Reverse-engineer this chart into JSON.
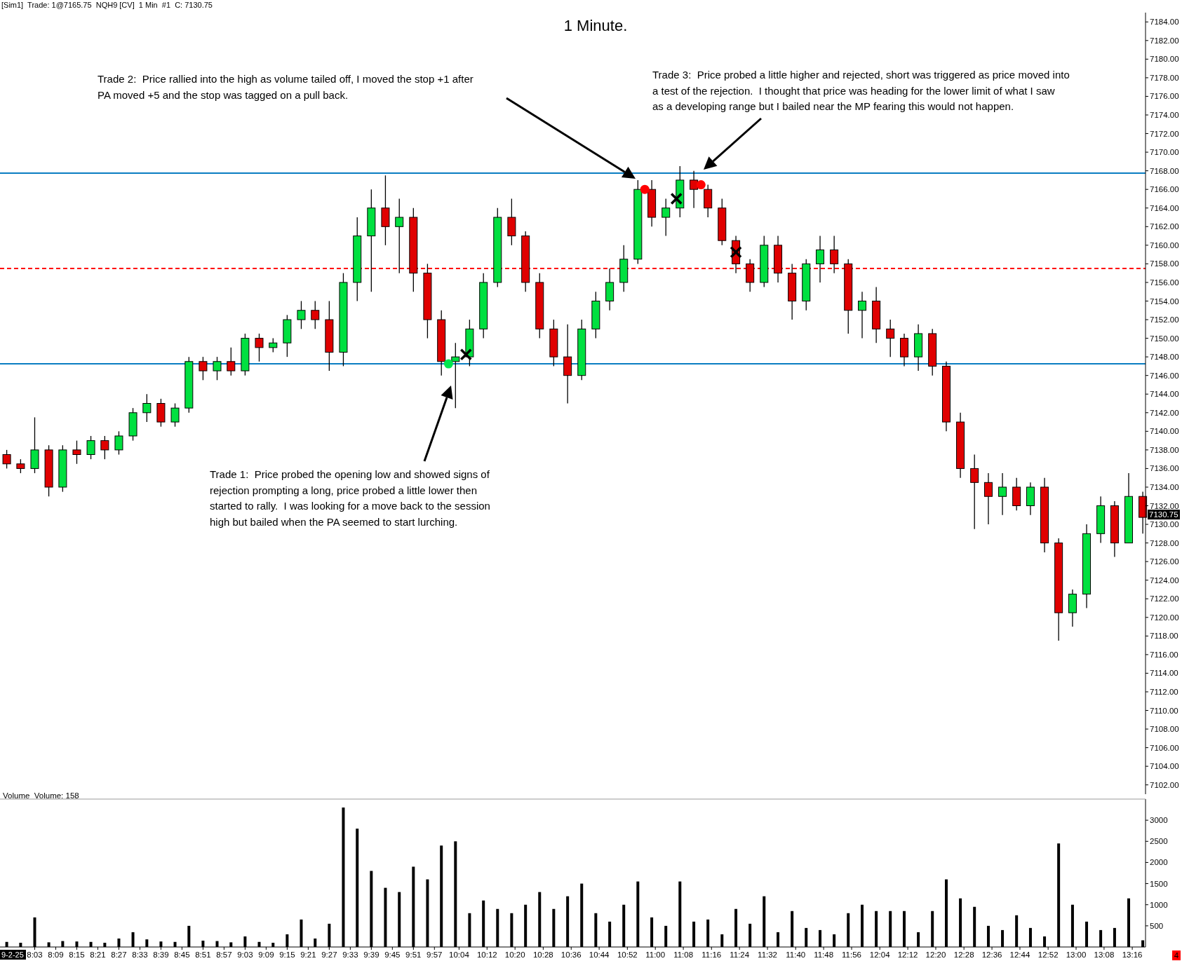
{
  "chart_data": [
    {
      "type": "candlestick",
      "title": "1 Minute.",
      "tick_labels": "y",
      "xlim": [
        7.885,
        13.33
      ],
      "ylim": [
        7101,
        7185
      ],
      "yticks": [
        {
          "value": 7102,
          "label": "7102.00"
        },
        {
          "value": 7104,
          "label": "7104.00"
        },
        {
          "value": 7106,
          "label": "7106.00"
        },
        {
          "value": 7108,
          "label": "7108.00"
        },
        {
          "value": 7110,
          "label": "7110.00"
        },
        {
          "value": 7112,
          "label": "7112.00"
        },
        {
          "value": 7114,
          "label": "7114.00"
        },
        {
          "value": 7116,
          "label": "7116.00"
        },
        {
          "value": 7118,
          "label": "7118.00"
        },
        {
          "value": 7120,
          "label": "7120.00"
        },
        {
          "value": 7122,
          "label": "7122.00"
        },
        {
          "value": 7124,
          "label": "7124.00"
        },
        {
          "value": 7126,
          "label": "7126.00"
        },
        {
          "value": 7128,
          "label": "7128.00"
        },
        {
          "value": 7130,
          "label": "7130.00"
        },
        {
          "value": 7132,
          "label": "7132.00"
        },
        {
          "value": 7134,
          "label": "7134.00"
        },
        {
          "value": 7136,
          "label": "7136.00"
        },
        {
          "value": 7138,
          "label": "7138.00"
        },
        {
          "value": 7140,
          "label": "7140.00"
        },
        {
          "value": 7142,
          "label": "7142.00"
        },
        {
          "value": 7144,
          "label": "7144.00"
        },
        {
          "value": 7146,
          "label": "7146.00"
        },
        {
          "value": 7148,
          "label": "7148.00"
        },
        {
          "value": 7150,
          "label": "7150.00"
        },
        {
          "value": 7152,
          "label": "7152.00"
        },
        {
          "value": 7154,
          "label": "7154.00"
        },
        {
          "value": 7156,
          "label": "7156.00"
        },
        {
          "value": 7158,
          "label": "7158.00"
        },
        {
          "value": 7160,
          "label": "7160.00"
        },
        {
          "value": 7162,
          "label": "7162.00"
        },
        {
          "value": 7164,
          "label": "7164.00"
        },
        {
          "value": 7166,
          "label": "7166.00"
        },
        {
          "value": 7168,
          "label": "7168.00"
        },
        {
          "value": 7170,
          "label": "7170.00"
        },
        {
          "value": 7172,
          "label": "7172.00"
        },
        {
          "value": 7174,
          "label": "7174.00"
        },
        {
          "value": 7176,
          "label": "7176.00"
        },
        {
          "value": 7178,
          "label": "7178.00"
        },
        {
          "value": 7180,
          "label": "7180.00"
        },
        {
          "value": 7182,
          "label": "7182.00"
        },
        {
          "value": 7184,
          "label": "7184.00"
        }
      ],
      "x": [
        7.917,
        7.983,
        8.05,
        8.117,
        8.183,
        8.25,
        8.317,
        8.383,
        8.45,
        8.517,
        8.583,
        8.65,
        8.717,
        8.783,
        8.85,
        8.917,
        8.983,
        9.05,
        9.117,
        9.183,
        9.25,
        9.317,
        9.383,
        9.45,
        9.517,
        9.583,
        9.65,
        9.717,
        9.783,
        9.85,
        9.917,
        9.983,
        10.05,
        10.117,
        10.183,
        10.25,
        10.317,
        10.383,
        10.45,
        10.517,
        10.583,
        10.65,
        10.717,
        10.783,
        10.85,
        10.917,
        10.983,
        11.05,
        11.117,
        11.183,
        11.25,
        11.317,
        11.383,
        11.45,
        11.517,
        11.583,
        11.65,
        11.717,
        11.783,
        11.85,
        11.917,
        11.983,
        12.05,
        12.117,
        12.183,
        12.25,
        12.317,
        12.383,
        12.45,
        12.517,
        12.583,
        12.65,
        12.717,
        12.783,
        12.85,
        12.917,
        12.983,
        13.05,
        13.117,
        13.183,
        13.25,
        13.317
      ],
      "ohlc": [
        [
          7137.5,
          7138,
          7136,
          7136.5
        ],
        [
          7136.5,
          7137,
          7135.5,
          7136
        ],
        [
          7136,
          7141.5,
          7135.5,
          7138
        ],
        [
          7138,
          7138.5,
          7133,
          7134
        ],
        [
          7134,
          7138.5,
          7133.5,
          7138
        ],
        [
          7138,
          7139,
          7136.5,
          7137.5
        ],
        [
          7137.5,
          7139.5,
          7137,
          7139
        ],
        [
          7139,
          7139.5,
          7137,
          7138
        ],
        [
          7138,
          7140,
          7137.5,
          7139.5
        ],
        [
          7139.5,
          7142.5,
          7139,
          7142
        ],
        [
          7142,
          7144,
          7141,
          7143
        ],
        [
          7143,
          7143.5,
          7140.5,
          7141
        ],
        [
          7141,
          7143,
          7140.5,
          7142.5
        ],
        [
          7142.5,
          7148,
          7142,
          7147.5
        ],
        [
          7147.5,
          7148,
          7145.5,
          7146.5
        ],
        [
          7146.5,
          7148,
          7145.5,
          7147.5
        ],
        [
          7147.5,
          7149,
          7146,
          7146.5
        ],
        [
          7146.5,
          7150.5,
          7146,
          7150
        ],
        [
          7150,
          7150.5,
          7147.5,
          7149
        ],
        [
          7149,
          7150,
          7148.5,
          7149.5
        ],
        [
          7149.5,
          7152.5,
          7148,
          7152
        ],
        [
          7152,
          7154,
          7151,
          7153
        ],
        [
          7153,
          7154,
          7151,
          7152
        ],
        [
          7152,
          7154,
          7146.5,
          7148.5
        ],
        [
          7148.5,
          7157,
          7147,
          7156
        ],
        [
          7156,
          7163,
          7154,
          7161
        ],
        [
          7161,
          7166,
          7155,
          7164
        ],
        [
          7164,
          7167.5,
          7160,
          7162
        ],
        [
          7162,
          7165,
          7157,
          7163
        ],
        [
          7163,
          7164,
          7155,
          7157
        ],
        [
          7157,
          7158,
          7150,
          7152
        ],
        [
          7152,
          7153,
          7146,
          7147.5
        ],
        [
          7147.5,
          7149.5,
          7142.5,
          7148
        ],
        [
          7148,
          7152,
          7147,
          7151
        ],
        [
          7151,
          7157,
          7150,
          7156
        ],
        [
          7156,
          7164,
          7155.5,
          7163
        ],
        [
          7163,
          7165,
          7160,
          7161
        ],
        [
          7161,
          7161.5,
          7155,
          7156
        ],
        [
          7156,
          7157,
          7150,
          7151
        ],
        [
          7151,
          7152,
          7147,
          7148
        ],
        [
          7148,
          7151.5,
          7143,
          7146
        ],
        [
          7146,
          7152,
          7145.5,
          7151
        ],
        [
          7151,
          7155,
          7150,
          7154
        ],
        [
          7154,
          7157.5,
          7153,
          7156
        ],
        [
          7156,
          7160,
          7155,
          7158.5
        ],
        [
          7158.5,
          7167,
          7158,
          7166
        ],
        [
          7166,
          7167,
          7162,
          7163
        ],
        [
          7163,
          7165,
          7161,
          7164
        ],
        [
          7164,
          7168.5,
          7163,
          7167
        ],
        [
          7167,
          7168,
          7164,
          7166
        ],
        [
          7166,
          7166.5,
          7163,
          7164
        ],
        [
          7164,
          7165,
          7160,
          7160.5
        ],
        [
          7160.5,
          7161,
          7157,
          7158
        ],
        [
          7158,
          7158.5,
          7155,
          7156
        ],
        [
          7156,
          7161,
          7155.5,
          7160
        ],
        [
          7160,
          7161,
          7156,
          7157
        ],
        [
          7157,
          7158,
          7152,
          7154
        ],
        [
          7154,
          7158.5,
          7153,
          7158
        ],
        [
          7158,
          7161,
          7156,
          7159.5
        ],
        [
          7159.5,
          7161,
          7157,
          7158
        ],
        [
          7158,
          7158.5,
          7150.5,
          7153
        ],
        [
          7153,
          7155,
          7150,
          7154
        ],
        [
          7154,
          7155.5,
          7149.5,
          7151
        ],
        [
          7151,
          7152,
          7148,
          7150
        ],
        [
          7150,
          7150.5,
          7147,
          7148
        ],
        [
          7148,
          7151.5,
          7146.5,
          7150.5
        ],
        [
          7150.5,
          7151,
          7146,
          7147
        ],
        [
          7147,
          7147.5,
          7140,
          7141
        ],
        [
          7141,
          7142,
          7135,
          7136
        ],
        [
          7136,
          7137.5,
          7129.5,
          7134.5
        ],
        [
          7134.5,
          7135.5,
          7130,
          7133
        ],
        [
          7133,
          7135.5,
          7131,
          7134
        ],
        [
          7134,
          7135,
          7131.5,
          7132
        ],
        [
          7132,
          7134.5,
          7131,
          7134
        ],
        [
          7134,
          7135,
          7127,
          7128
        ],
        [
          7128,
          7128.5,
          7117.5,
          7120.5
        ],
        [
          7120.5,
          7123,
          7119,
          7122.5
        ],
        [
          7122.5,
          7130,
          7121,
          7129
        ],
        [
          7129,
          7133,
          7128,
          7132
        ],
        [
          7132,
          7132.5,
          7126.5,
          7128
        ],
        [
          7128,
          7135.5,
          7128,
          7133
        ],
        [
          7133,
          7133.5,
          7129,
          7130.75
        ]
      ],
      "series": [
        {
          "type": "scatter",
          "marker": "circle",
          "color": "#00e64d",
          "x": [
            10.017
          ],
          "values": [
            7147.25
          ]
        },
        {
          "type": "scatter",
          "marker": "circle",
          "color": "#ff0000",
          "x": [
            10.95,
            11.217
          ],
          "values": [
            7166,
            7166.5
          ]
        },
        {
          "type": "scatter",
          "marker": "cross",
          "color": "#000000",
          "x": [
            10.1,
            11.1,
            11.383
          ],
          "values": [
            7148.25,
            7165,
            7159.25
          ]
        }
      ],
      "ref_lines": [
        {
          "axis": "y",
          "value": 7167.75,
          "color": "#0a7dc2",
          "line_style": "solid"
        },
        {
          "axis": "y",
          "value": 7147.25,
          "color": "#0a7dc2",
          "line_style": "solid"
        },
        {
          "axis": "y",
          "value": 7157.5,
          "color": "#ff0000",
          "line_style": "dashed"
        }
      ],
      "annotations": [
        "[Sim1]  Trade: 1@7165.75  NQH9 [CV]  1 Min  #1  C: 7130.75",
        "Trade 2:  Price rallied into the high as volume tailed off, I moved the stop +1 after PA moved +5 and the stop was tagged on a pull back.",
        "Trade 3:  Price probed a little higher and rejected, short was triggered as price moved into a test of the rejection.  I thought that price was heading for the lower limit of what I saw as a developing range but I bailed near the MP fearing this would not happen.",
        "Trade 1:  Price probed the opening low and showed signs of rejection prompting a long, price probed a little lower then started to rally.  I was looking for a move back to the session high but bailed when the PA seemed to start lurching.",
        "7130.75"
      ]
    },
    {
      "type": "bar",
      "title": "Volume  Volume: 158",
      "color": "#000000",
      "xlim": [
        7.885,
        13.33
      ],
      "xticks": [
        {
          "value": 8.05,
          "label": "8:03"
        },
        {
          "value": 8.15,
          "label": "8:09"
        },
        {
          "value": 8.25,
          "label": "8:15"
        },
        {
          "value": 8.35,
          "label": "8:21"
        },
        {
          "value": 8.45,
          "label": "8:27"
        },
        {
          "value": 8.55,
          "label": "8:33"
        },
        {
          "value": 8.65,
          "label": "8:39"
        },
        {
          "value": 8.75,
          "label": "8:45"
        },
        {
          "value": 8.85,
          "label": "8:51"
        },
        {
          "value": 8.95,
          "label": "8:57"
        },
        {
          "value": 9.05,
          "label": "9:03"
        },
        {
          "value": 9.15,
          "label": "9:09"
        },
        {
          "value": 9.25,
          "label": "9:15"
        },
        {
          "value": 9.35,
          "label": "9:21"
        },
        {
          "value": 9.45,
          "label": "9:27"
        },
        {
          "value": 9.55,
          "label": "9:33"
        },
        {
          "value": 9.65,
          "label": "9:39"
        },
        {
          "value": 9.75,
          "label": "9:45"
        },
        {
          "value": 9.85,
          "label": "9:51"
        },
        {
          "value": 9.95,
          "label": "9:57"
        },
        {
          "value": 10.067,
          "label": "10:04"
        },
        {
          "value": 10.2,
          "label": "10:12"
        },
        {
          "value": 10.333,
          "label": "10:20"
        },
        {
          "value": 10.467,
          "label": "10:28"
        },
        {
          "value": 10.6,
          "label": "10:36"
        },
        {
          "value": 10.733,
          "label": "10:44"
        },
        {
          "value": 10.867,
          "label": "10:52"
        },
        {
          "value": 11,
          "label": "11:00"
        },
        {
          "value": 11.133,
          "label": "11:08"
        },
        {
          "value": 11.267,
          "label": "11:16"
        },
        {
          "value": 11.4,
          "label": "11:24"
        },
        {
          "value": 11.533,
          "label": "11:32"
        },
        {
          "value": 11.667,
          "label": "11:40"
        },
        {
          "value": 11.8,
          "label": "11:48"
        },
        {
          "value": 11.933,
          "label": "11:56"
        },
        {
          "value": 12.067,
          "label": "12:04"
        },
        {
          "value": 12.2,
          "label": "12:12"
        },
        {
          "value": 12.333,
          "label": "12:20"
        },
        {
          "value": 12.467,
          "label": "12:28"
        },
        {
          "value": 12.6,
          "label": "12:36"
        },
        {
          "value": 12.733,
          "label": "12:44"
        },
        {
          "value": 12.867,
          "label": "12:52"
        },
        {
          "value": 13,
          "label": "13:00"
        },
        {
          "value": 13.133,
          "label": "13:08"
        },
        {
          "value": 13.267,
          "label": "13:16"
        }
      ],
      "ylim": [
        0,
        3500
      ],
      "yticks": [
        500,
        1000,
        1500,
        2000,
        2500,
        3000
      ],
      "x": [
        7.917,
        7.983,
        8.05,
        8.117,
        8.183,
        8.25,
        8.317,
        8.383,
        8.45,
        8.517,
        8.583,
        8.65,
        8.717,
        8.783,
        8.85,
        8.917,
        8.983,
        9.05,
        9.117,
        9.183,
        9.25,
        9.317,
        9.383,
        9.45,
        9.517,
        9.583,
        9.65,
        9.717,
        9.783,
        9.85,
        9.917,
        9.983,
        10.05,
        10.117,
        10.183,
        10.25,
        10.317,
        10.383,
        10.45,
        10.517,
        10.583,
        10.65,
        10.717,
        10.783,
        10.85,
        10.917,
        10.983,
        11.05,
        11.117,
        11.183,
        11.25,
        11.317,
        11.383,
        11.45,
        11.517,
        11.583,
        11.65,
        11.717,
        11.783,
        11.85,
        11.917,
        11.983,
        12.05,
        12.117,
        12.183,
        12.25,
        12.317,
        12.383,
        12.45,
        12.517,
        12.583,
        12.65,
        12.717,
        12.783,
        12.85,
        12.917,
        12.983,
        13.05,
        13.117,
        13.183,
        13.25,
        13.317
      ],
      "values": [
        120,
        100,
        700,
        110,
        140,
        130,
        120,
        100,
        200,
        350,
        180,
        130,
        120,
        500,
        150,
        140,
        110,
        250,
        120,
        100,
        300,
        650,
        200,
        550,
        3300,
        2800,
        1800,
        1400,
        1300,
        1900,
        1600,
        2400,
        2500,
        800,
        1100,
        900,
        800,
        1000,
        1300,
        900,
        1200,
        1500,
        800,
        600,
        1000,
        1550,
        700,
        500,
        1550,
        600,
        650,
        300,
        900,
        550,
        1200,
        350,
        850,
        450,
        400,
        300,
        800,
        1000,
        850,
        850,
        850,
        350,
        850,
        1600,
        1150,
        950,
        500,
        400,
        750,
        450,
        250,
        2450,
        1000,
        600,
        400,
        450,
        1150,
        158
      ],
      "annotations": [
        "9-2-25",
        "4"
      ]
    }
  ]
}
